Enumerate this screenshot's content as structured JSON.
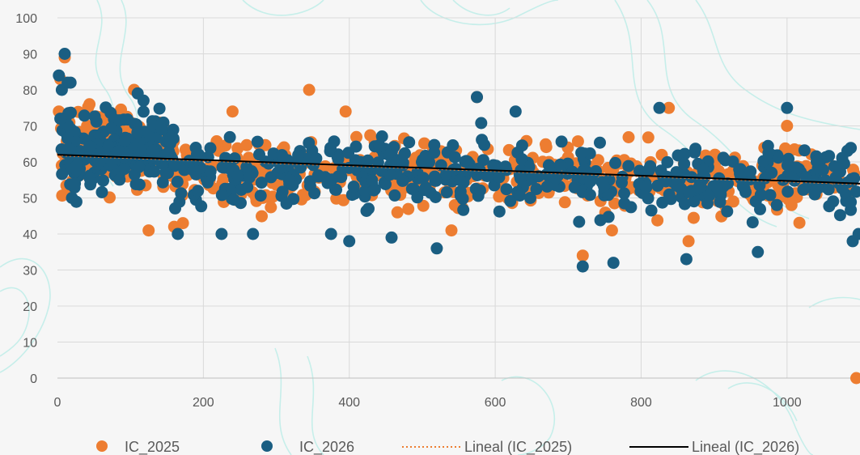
{
  "chart_data": {
    "type": "scatter",
    "title": "",
    "xlabel": "",
    "ylabel": "",
    "xlim": [
      0,
      1100
    ],
    "ylim": [
      0,
      100
    ],
    "x_ticks": [
      0,
      200,
      400,
      600,
      800,
      1000
    ],
    "y_ticks": [
      0,
      10,
      20,
      30,
      40,
      50,
      60,
      70,
      80,
      90,
      100
    ],
    "grid": true,
    "legend_position": "bottom",
    "series": [
      {
        "name": "IC_2025",
        "color": "#ed7d31",
        "points": [
          [
            2,
            74
          ],
          [
            4,
            83
          ],
          [
            6,
            59
          ],
          [
            10,
            89
          ],
          [
            14,
            69
          ],
          [
            20,
            53
          ],
          [
            24,
            55
          ],
          [
            105,
            80
          ],
          [
            125,
            41
          ],
          [
            160,
            42
          ],
          [
            172,
            43
          ],
          [
            240,
            74
          ],
          [
            345,
            80
          ],
          [
            395,
            74
          ],
          [
            575,
            78
          ],
          [
            540,
            41
          ],
          [
            720,
            34
          ],
          [
            760,
            41
          ],
          [
            838,
            75
          ],
          [
            865,
            38
          ],
          [
            1000,
            70
          ],
          [
            1095,
            0
          ]
        ],
        "cloud": [
          {
            "x_from": 5,
            "x_to": 160,
            "y_mean": 63,
            "y_spread": 7,
            "count": 200
          },
          {
            "x_from": 160,
            "x_to": 700,
            "y_mean": 57,
            "y_spread": 6.5,
            "count": 280
          },
          {
            "x_from": 700,
            "x_to": 1095,
            "y_mean": 55,
            "y_spread": 6,
            "count": 200
          }
        ]
      },
      {
        "name": "IC_2026",
        "color": "#1a5e82",
        "points": [
          [
            2,
            84
          ],
          [
            4,
            72
          ],
          [
            6,
            80
          ],
          [
            10,
            90
          ],
          [
            14,
            82
          ],
          [
            20,
            50
          ],
          [
            24,
            54
          ],
          [
            18,
            82
          ],
          [
            110,
            79
          ],
          [
            118,
            77
          ],
          [
            165,
            40
          ],
          [
            225,
            40
          ],
          [
            268,
            40
          ],
          [
            375,
            40
          ],
          [
            400,
            38
          ],
          [
            458,
            39
          ],
          [
            520,
            36
          ],
          [
            575,
            78
          ],
          [
            628,
            74
          ],
          [
            720,
            31
          ],
          [
            762,
            32
          ],
          [
            825,
            75
          ],
          [
            862,
            33
          ],
          [
            960,
            35
          ],
          [
            1000,
            75
          ],
          [
            1090,
            38
          ],
          [
            1098,
            40
          ]
        ],
        "cloud": [
          {
            "x_from": 5,
            "x_to": 160,
            "y_mean": 63,
            "y_spread": 7,
            "count": 200
          },
          {
            "x_from": 160,
            "x_to": 700,
            "y_mean": 57,
            "y_spread": 6.5,
            "count": 280
          },
          {
            "x_from": 700,
            "x_to": 1095,
            "y_mean": 55,
            "y_spread": 6,
            "count": 200
          }
        ]
      }
    ],
    "trendlines": [
      {
        "name": "Lineal (IC_2025)",
        "series": "IC_2025",
        "style": "dotted",
        "color": "#ed7d31",
        "start": [
          0,
          61.8
        ],
        "end": [
          1100,
          53.8
        ]
      },
      {
        "name": "Lineal (IC_2026)",
        "series": "IC_2026",
        "style": "solid",
        "color": "#000000",
        "start": [
          0,
          62.0
        ],
        "end": [
          1100,
          54.0
        ]
      }
    ]
  }
}
